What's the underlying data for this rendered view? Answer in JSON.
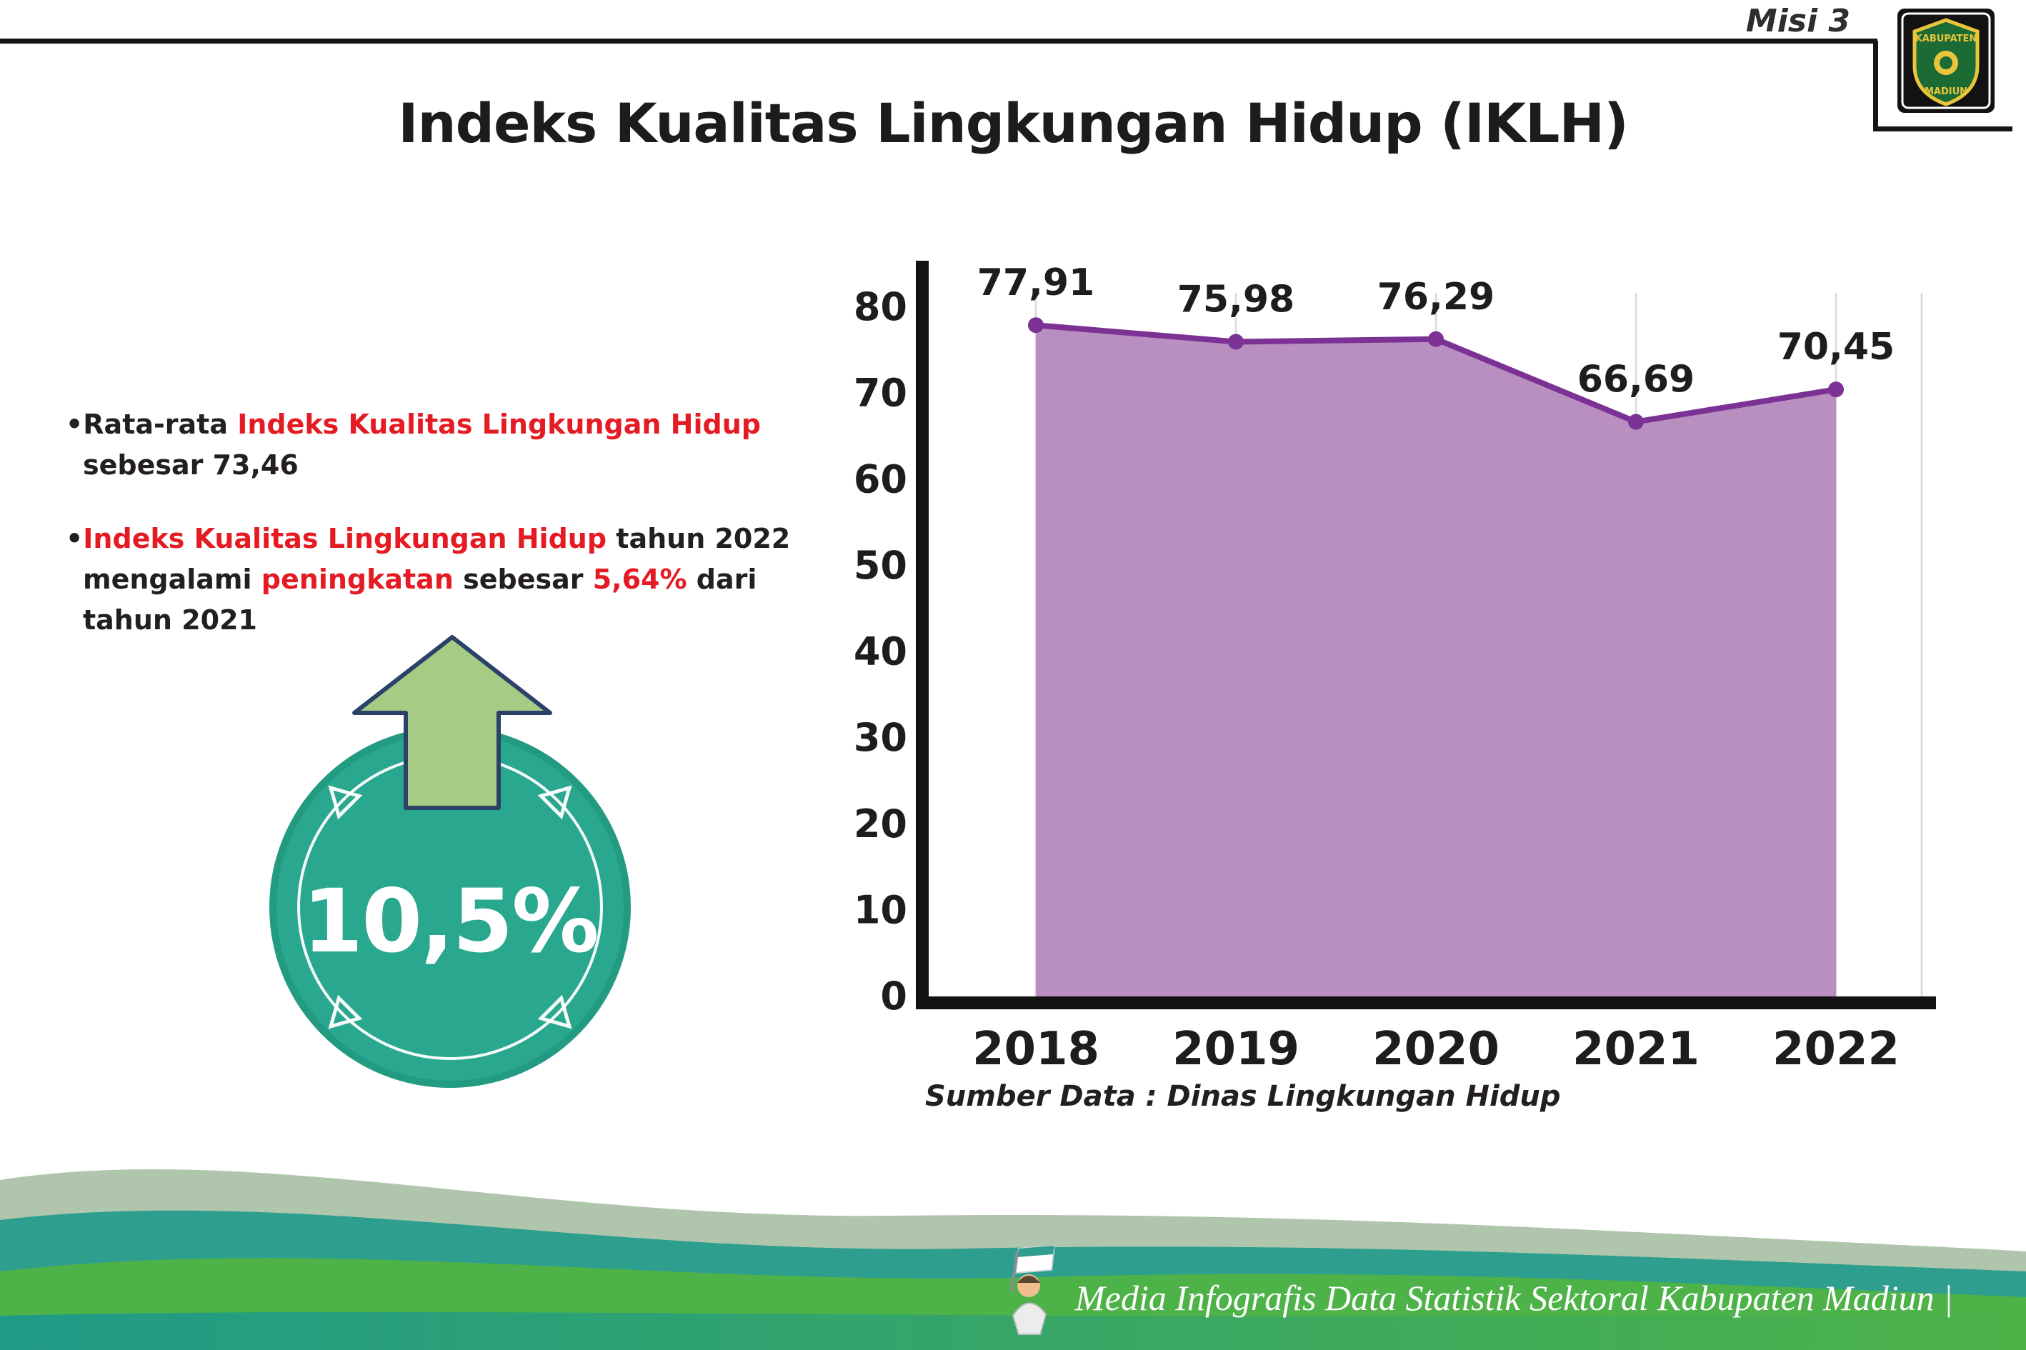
{
  "header": {
    "misi": "Misi 3",
    "title": "Indeks Kualitas Lingkungan Hidup (IKLH)",
    "logo": {
      "top_text": "KABUPATEN",
      "bottom_text": "MADIUN"
    }
  },
  "bullets": [
    {
      "marker": "•",
      "segments": [
        {
          "text": "Rata-rata ",
          "style": "dark"
        },
        {
          "text": "Indeks Kualitas Lingkungan Hidup",
          "style": "red"
        },
        {
          "text": " sebesar 73,46",
          "style": "dark"
        }
      ]
    },
    {
      "marker": "•",
      "segments": [
        {
          "text": "Indeks Kualitas Lingkungan Hidup",
          "style": "red"
        },
        {
          "text": " tahun 2022 mengalami ",
          "style": "dark"
        },
        {
          "text": "peningkatan",
          "style": "red"
        },
        {
          "text": " sebesar ",
          "style": "dark"
        },
        {
          "text": "5,64%",
          "style": "red"
        },
        {
          "text": " dari tahun 2021",
          "style": "dark"
        }
      ]
    }
  ],
  "badge": {
    "value": "10,5%"
  },
  "chart_data": {
    "type": "area",
    "title": "",
    "categories": [
      "2018",
      "2019",
      "2020",
      "2021",
      "2022"
    ],
    "values": [
      77.91,
      75.98,
      76.29,
      66.69,
      70.45
    ],
    "labels": [
      "77,91",
      "75,98",
      "76,29",
      "66,69",
      "70,45"
    ],
    "ylim": [
      0,
      80
    ],
    "ytick_step": 10,
    "grid": "light vertical gridlines per year",
    "legend": "none",
    "fill_color": "#b98fc1",
    "line_color": "#7b3294",
    "source": "Sumber Data : Dinas Lingkungan Hidup"
  },
  "footer": {
    "caption": "Media Infografis Data Statistik Sektoral Kabupaten Madiun |"
  },
  "colors": {
    "accent_red": "#e51b23",
    "badge_teal": "#2aa88f",
    "arrow_green": "#a5cb85",
    "wave_sage": "#b0c6ac",
    "wave_teal": "#2e9e8f",
    "wave_green": "#4db248"
  }
}
